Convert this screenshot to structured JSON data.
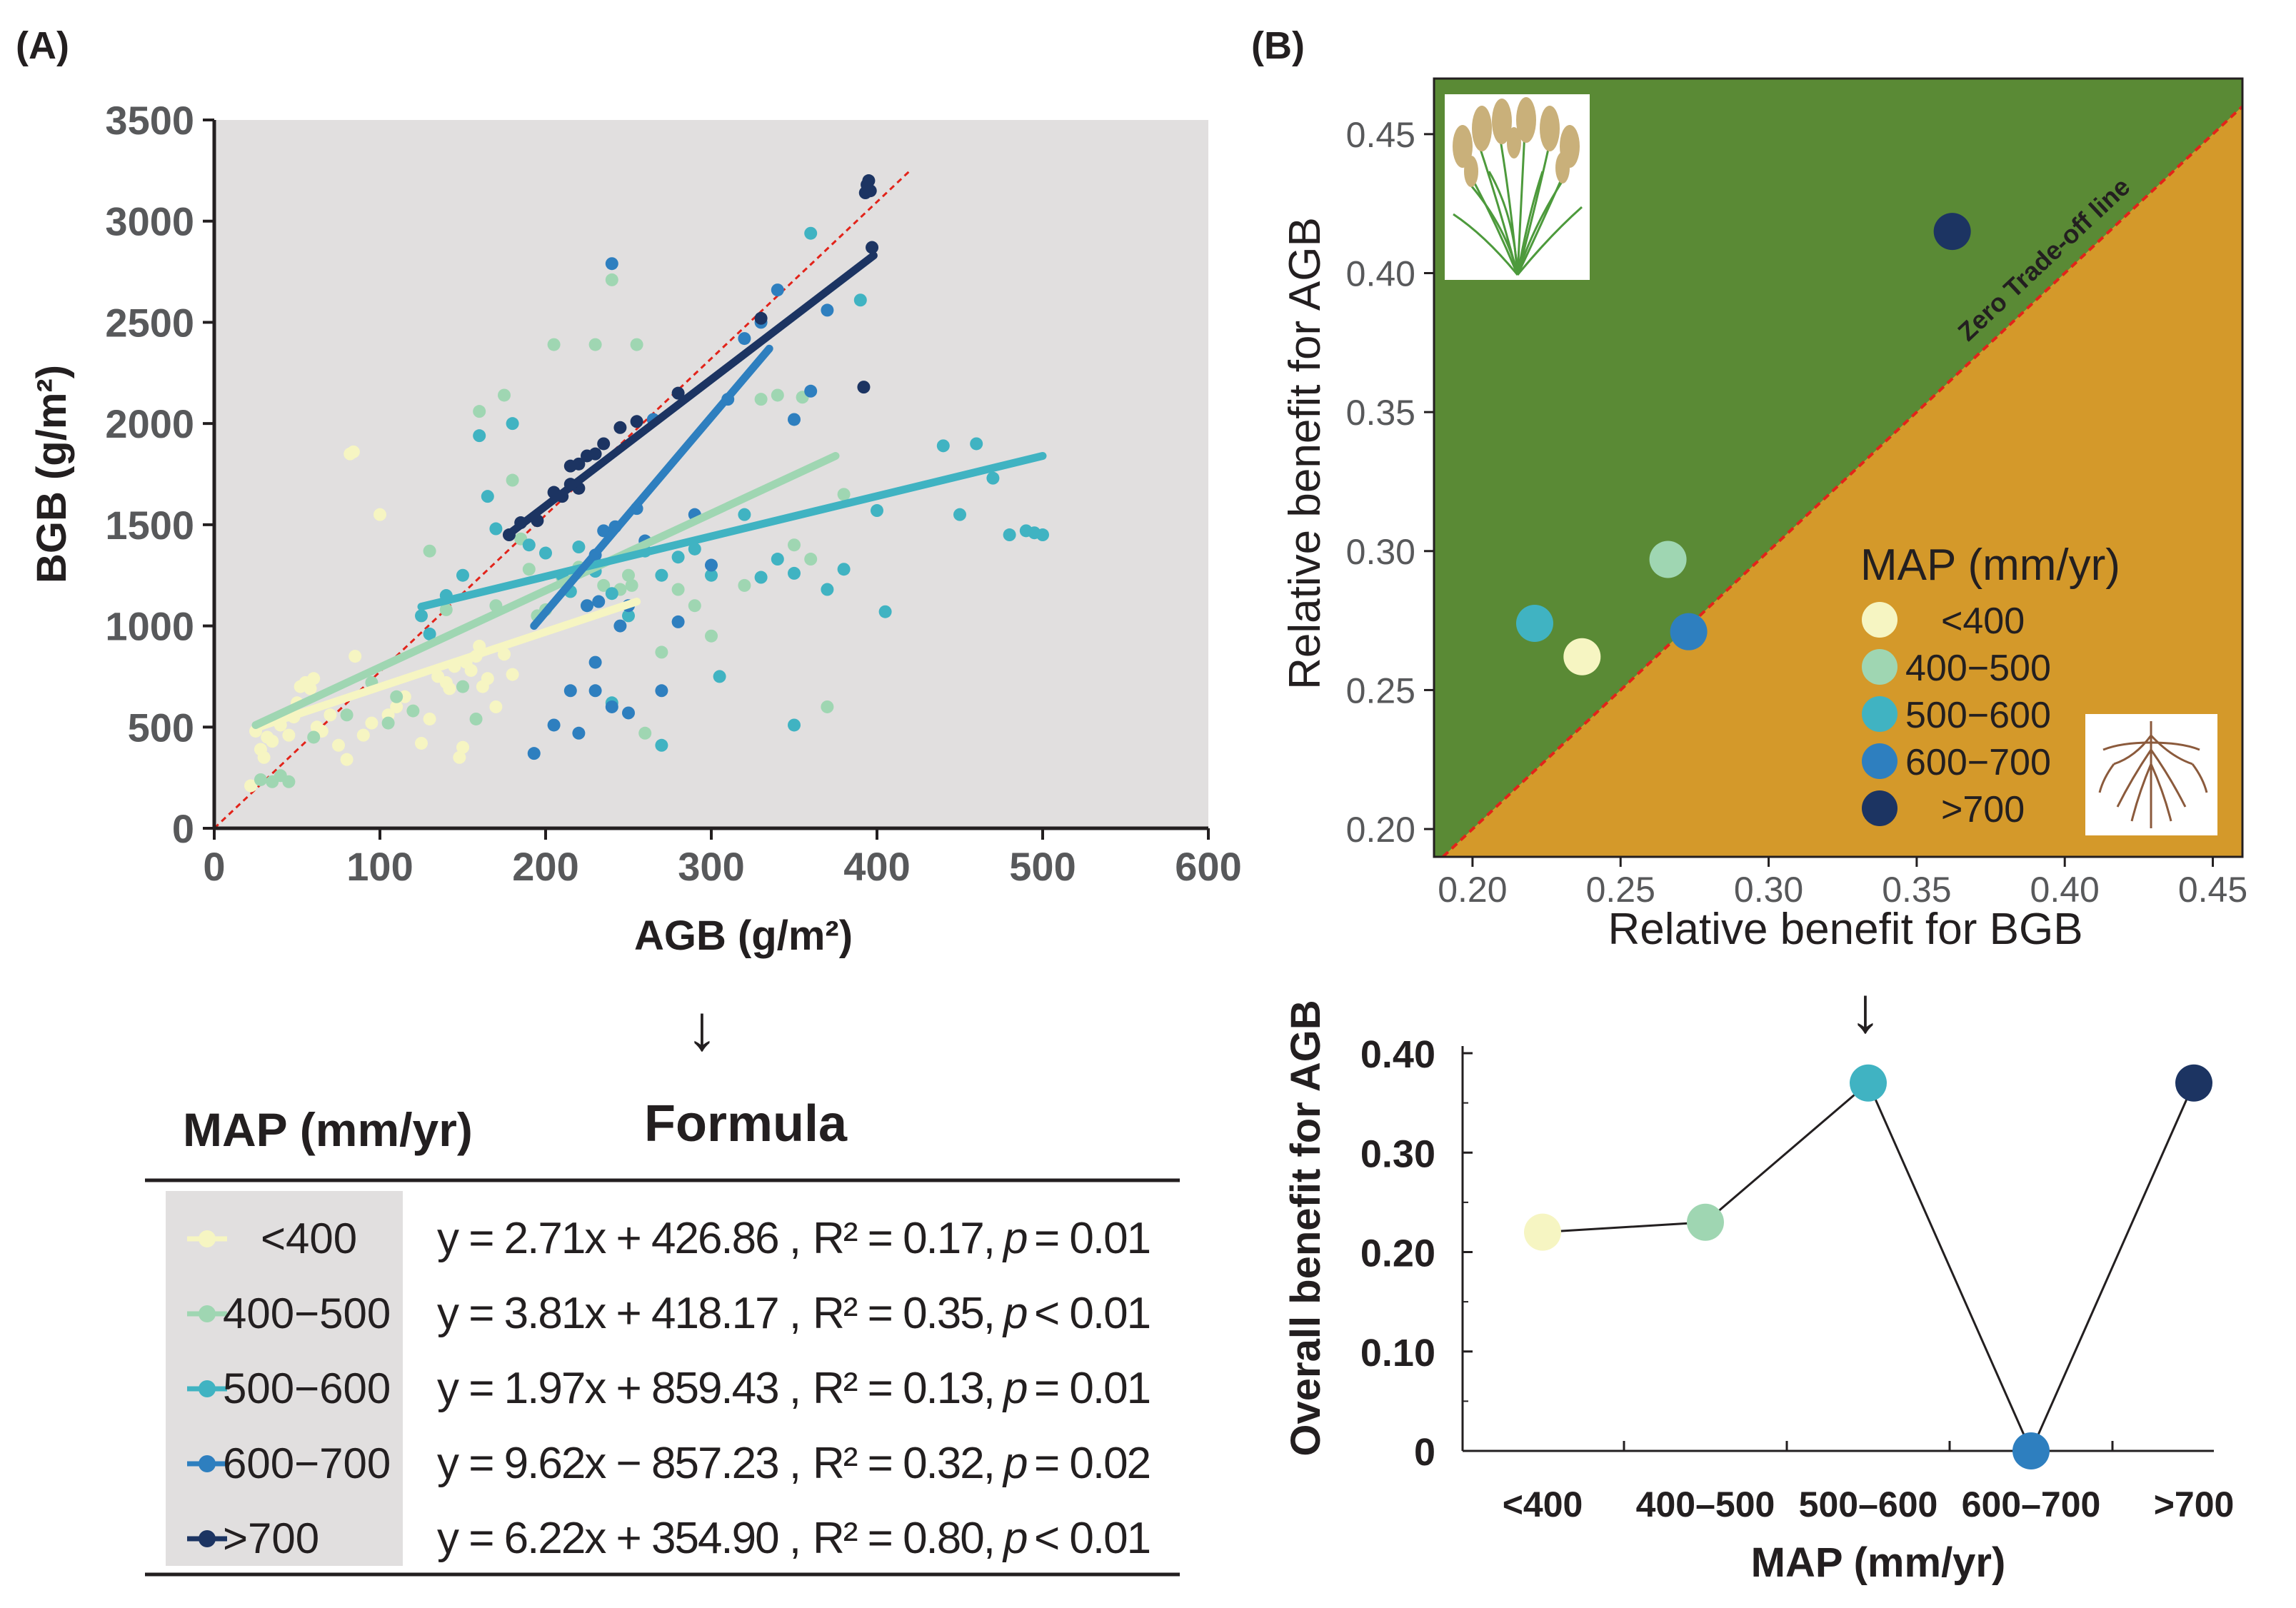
{
  "colors": {
    "lt400": "#f6f5c2",
    "b400_500": "#9fd6b2",
    "b500_600": "#40b3c2",
    "b600_700": "#2e7fbf",
    "gt700": "#1c3462",
    "plot_bg": "#e1dfdf",
    "trade_green": "#5a8a35",
    "trade_orange": "#d4992a",
    "ref_line": "#e2231a"
  },
  "panel_a": {
    "label": "(A)",
    "arrow": "↓",
    "table": {
      "header_map": "MAP (mm/yr)",
      "header_formula": "Formula",
      "rows": [
        {
          "key": "lt400",
          "label": "<400",
          "eq": "y = 2.71x + 426.86 ,",
          "r2": "R² = 0.17,",
          "p_sym": "p",
          "p_val": "= 0.01"
        },
        {
          "key": "b400_500",
          "label": "400−500",
          "eq": "y = 3.81x + 418.17 ,",
          "r2": "R² = 0.35,",
          "p_sym": "p",
          "p_val": "< 0.01"
        },
        {
          "key": "b500_600",
          "label": "500−600",
          "eq": "y = 1.97x + 859.43 ,",
          "r2": "R² = 0.13,",
          "p_sym": "p",
          "p_val": "= 0.01"
        },
        {
          "key": "b600_700",
          "label": "600−700",
          "eq": "y = 9.62x − 857.23 ,",
          "r2": "R² = 0.32,",
          "p_sym": "p",
          "p_val": "= 0.02"
        },
        {
          "key": "gt700",
          "label": ">700",
          "eq": "y = 6.22x + 354.90 ,",
          "r2": "R² = 0.80,",
          "p_sym": "p",
          "p_val": "< 0.01"
        }
      ]
    }
  },
  "panel_b": {
    "label": "(B)",
    "arrow": "↓",
    "zero_line_label": "Zero Trade-off line",
    "legend_title": "MAP (mm/yr)",
    "legend_items": [
      {
        "key": "lt400",
        "label": "<400"
      },
      {
        "key": "b400_500",
        "label": "400−500"
      },
      {
        "key": "b500_600",
        "label": "500−600"
      },
      {
        "key": "b600_700",
        "label": "600−700"
      },
      {
        "key": "gt700",
        "label": ">700"
      }
    ],
    "grass_icon": "grass-plant-icon",
    "root_icon": "root-system-icon"
  },
  "chart_data": [
    {
      "type": "scatter",
      "title": "",
      "xlabel": "AGB (g/m²)",
      "ylabel": "BGB (g/m²)",
      "xlim": [
        0,
        600
      ],
      "ylim": [
        0,
        3500
      ],
      "xticks": [
        "0",
        "100",
        "200",
        "300",
        "400",
        "500",
        "600"
      ],
      "yticks": [
        "0",
        "500",
        "1000",
        "1500",
        "2000",
        "2500",
        "3000",
        "3500"
      ],
      "reference_line": {
        "name": "1:1",
        "x": [
          0,
          420
        ],
        "y": [
          0,
          3250
        ]
      },
      "series": [
        {
          "name": "<400",
          "key": "lt400",
          "fit": {
            "x": [
              25,
              255
            ],
            "y": [
              495,
              1120
            ]
          },
          "points": [
            [
              22,
              210
            ],
            [
              25,
              480
            ],
            [
              28,
              390
            ],
            [
              30,
              350
            ],
            [
              32,
              450
            ],
            [
              35,
              430
            ],
            [
              40,
              510
            ],
            [
              45,
              460
            ],
            [
              48,
              550
            ],
            [
              50,
              620
            ],
            [
              52,
              700
            ],
            [
              55,
              720
            ],
            [
              58,
              690
            ],
            [
              60,
              740
            ],
            [
              62,
              500
            ],
            [
              65,
              480
            ],
            [
              70,
              560
            ],
            [
              75,
              410
            ],
            [
              80,
              340
            ],
            [
              82,
              1850
            ],
            [
              84,
              1860
            ],
            [
              85,
              850
            ],
            [
              90,
              460
            ],
            [
              95,
              520
            ],
            [
              100,
              1550
            ],
            [
              105,
              560
            ],
            [
              110,
              600
            ],
            [
              115,
              650
            ],
            [
              120,
              580
            ],
            [
              125,
              420
            ],
            [
              130,
              540
            ],
            [
              135,
              750
            ],
            [
              140,
              720
            ],
            [
              142,
              690
            ],
            [
              145,
              800
            ],
            [
              148,
              350
            ],
            [
              150,
              400
            ],
            [
              152,
              820
            ],
            [
              155,
              780
            ],
            [
              158,
              850
            ],
            [
              160,
              900
            ],
            [
              162,
              700
            ],
            [
              165,
              740
            ],
            [
              170,
              600
            ],
            [
              175,
              860
            ],
            [
              180,
              760
            ]
          ]
        },
        {
          "name": "400−500",
          "key": "b400_500",
          "fit": {
            "x": [
              25,
              375
            ],
            "y": [
              510,
              1840
            ]
          },
          "points": [
            [
              28,
              240
            ],
            [
              35,
              230
            ],
            [
              40,
              260
            ],
            [
              45,
              230
            ],
            [
              60,
              450
            ],
            [
              80,
              560
            ],
            [
              95,
              720
            ],
            [
              105,
              520
            ],
            [
              110,
              650
            ],
            [
              120,
              580
            ],
            [
              130,
              1370
            ],
            [
              140,
              1080
            ],
            [
              150,
              700
            ],
            [
              158,
              540
            ],
            [
              160,
              2060
            ],
            [
              170,
              1100
            ],
            [
              175,
              2140
            ],
            [
              180,
              1720
            ],
            [
              185,
              1430
            ],
            [
              190,
              1280
            ],
            [
              195,
              1050
            ],
            [
              200,
              1080
            ],
            [
              205,
              2390
            ],
            [
              210,
              1240
            ],
            [
              215,
              1170
            ],
            [
              220,
              1290
            ],
            [
              225,
              1100
            ],
            [
              230,
              2390
            ],
            [
              235,
              1200
            ],
            [
              240,
              2710
            ],
            [
              245,
              1180
            ],
            [
              250,
              1250
            ],
            [
              252,
              1200
            ],
            [
              255,
              2390
            ],
            [
              260,
              470
            ],
            [
              270,
              870
            ],
            [
              280,
              1180
            ],
            [
              290,
              1100
            ],
            [
              300,
              950
            ],
            [
              320,
              1200
            ],
            [
              330,
              2120
            ],
            [
              340,
              2140
            ],
            [
              350,
              1400
            ],
            [
              355,
              2130
            ],
            [
              360,
              1330
            ],
            [
              370,
              600
            ],
            [
              380,
              1650
            ]
          ]
        },
        {
          "name": "500−600",
          "key": "b500_600",
          "fit": {
            "x": [
              125,
              500
            ],
            "y": [
              1095,
              1840
            ]
          },
          "points": [
            [
              125,
              1050
            ],
            [
              130,
              960
            ],
            [
              140,
              1150
            ],
            [
              150,
              1250
            ],
            [
              160,
              1940
            ],
            [
              165,
              1640
            ],
            [
              170,
              1480
            ],
            [
              180,
              2000
            ],
            [
              190,
              1400
            ],
            [
              200,
              1360
            ],
            [
              210,
              1250
            ],
            [
              215,
              1170
            ],
            [
              220,
              1390
            ],
            [
              230,
              1270
            ],
            [
              240,
              1160
            ],
            [
              250,
              1050
            ],
            [
              260,
              1370
            ],
            [
              270,
              1250
            ],
            [
              280,
              1340
            ],
            [
              290,
              1380
            ],
            [
              300,
              1250
            ],
            [
              305,
              750
            ],
            [
              320,
              1550
            ],
            [
              330,
              1240
            ],
            [
              340,
              1330
            ],
            [
              350,
              1260
            ],
            [
              360,
              2940
            ],
            [
              370,
              1180
            ],
            [
              380,
              1280
            ],
            [
              390,
              2610
            ],
            [
              400,
              1570
            ],
            [
              405,
              1070
            ],
            [
              440,
              1890
            ],
            [
              450,
              1550
            ],
            [
              460,
              1900
            ],
            [
              470,
              1730
            ],
            [
              480,
              1450
            ],
            [
              490,
              1470
            ],
            [
              495,
              1460
            ],
            [
              500,
              1450
            ],
            [
              350,
              510
            ],
            [
              270,
              410
            ],
            [
              240,
              620
            ]
          ]
        },
        {
          "name": "600−700",
          "key": "b600_700",
          "fit": {
            "x": [
              193,
              335
            ],
            "y": [
              1000,
              2370
            ]
          },
          "points": [
            [
              193,
              370
            ],
            [
              205,
              510
            ],
            [
              215,
              680
            ],
            [
              220,
              470
            ],
            [
              225,
              1100
            ],
            [
              230,
              1350
            ],
            [
              232,
              1120
            ],
            [
              235,
              1470
            ],
            [
              240,
              2790
            ],
            [
              242,
              1490
            ],
            [
              245,
              1000
            ],
            [
              250,
              1100
            ],
            [
              255,
              1580
            ],
            [
              260,
              1420
            ],
            [
              265,
              2020
            ],
            [
              270,
              680
            ],
            [
              280,
              1020
            ],
            [
              290,
              1550
            ],
            [
              300,
              1300
            ],
            [
              310,
              2120
            ],
            [
              320,
              2420
            ],
            [
              330,
              2500
            ],
            [
              340,
              2660
            ],
            [
              350,
              2020
            ],
            [
              360,
              2160
            ],
            [
              370,
              2560
            ],
            [
              230,
              820
            ],
            [
              240,
              600
            ],
            [
              250,
              570
            ],
            [
              230,
              680
            ]
          ]
        },
        {
          "name": ">700",
          "key": "gt700",
          "fit": {
            "x": [
              178,
              398
            ],
            "y": [
              1455,
              2830
            ]
          },
          "points": [
            [
              178,
              1450
            ],
            [
              185,
              1510
            ],
            [
              195,
              1520
            ],
            [
              205,
              1660
            ],
            [
              215,
              1700
            ],
            [
              220,
              1800
            ],
            [
              225,
              1840
            ],
            [
              230,
              1850
            ],
            [
              235,
              1900
            ],
            [
              245,
              1980
            ],
            [
              255,
              2010
            ],
            [
              280,
              2150
            ],
            [
              330,
              2520
            ],
            [
              392,
              2180
            ],
            [
              393,
              3140
            ],
            [
              394,
              3180
            ],
            [
              395,
              3200
            ],
            [
              396,
              3150
            ],
            [
              397,
              2870
            ],
            [
              215,
              1790
            ],
            [
              220,
              1680
            ],
            [
              210,
              1640
            ]
          ]
        }
      ]
    },
    {
      "type": "scatter",
      "title": "",
      "xlabel": "Relative   benefit   for   BGB",
      "ylabel": "Relative   benefit   for   AGB",
      "xlim": [
        0.187,
        0.46
      ],
      "ylim": [
        0.19,
        0.47
      ],
      "xticks": [
        "0.20",
        "0.25",
        "0.30",
        "0.35",
        "0.40",
        "0.45"
      ],
      "yticks": [
        "0.20",
        "0.25",
        "0.30",
        "0.35",
        "0.40",
        "0.45"
      ],
      "series": [
        {
          "name": "<400",
          "key": "lt400",
          "x": [
            0.237
          ],
          "y": [
            0.262
          ]
        },
        {
          "name": "400−500",
          "key": "b400_500",
          "x": [
            0.266
          ],
          "y": [
            0.297
          ]
        },
        {
          "name": "500−600",
          "key": "b500_600",
          "x": [
            0.221
          ],
          "y": [
            0.274
          ]
        },
        {
          "name": "600−700",
          "key": "b600_700",
          "x": [
            0.273
          ],
          "y": [
            0.271
          ]
        },
        {
          "name": ">700",
          "key": "gt700",
          "x": [
            0.362
          ],
          "y": [
            0.415
          ]
        }
      ]
    },
    {
      "type": "line",
      "title": "",
      "xlabel": "MAP (mm/yr)",
      "ylabel": "Overall benefit for AGB",
      "categories": [
        "<400",
        "400–500",
        "500–600",
        "600–700",
        ">700"
      ],
      "values": [
        0.22,
        0.23,
        0.37,
        0.0,
        0.37
      ],
      "ylim": [
        0,
        0.4
      ],
      "yticks": [
        "0",
        "0.10",
        "0.20",
        "0.30",
        "0.40"
      ]
    }
  ]
}
